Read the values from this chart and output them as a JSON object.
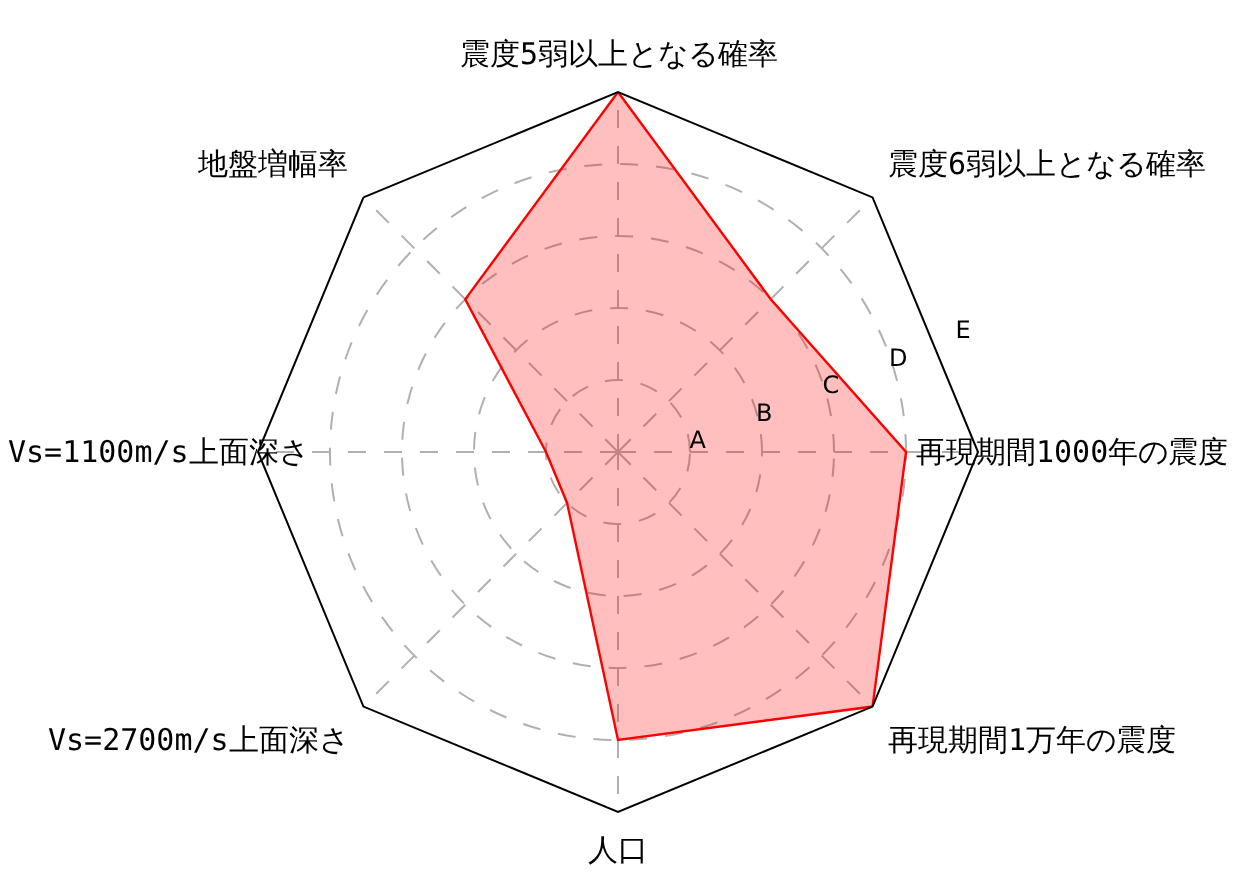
{
  "chart_data": {
    "type": "radar",
    "categories": [
      "震度5弱以上となる確率",
      "震度6弱以上となる確率",
      "再現期間1000年の震度",
      "再現期間1万年の震度",
      "人口",
      "Vs=2700m/s上面深さ",
      "Vs=1100m/s上面深さ",
      "地盤増幅率"
    ],
    "series": [
      {
        "color": "#ff0000",
        "values": [
          5,
          3,
          4,
          5,
          4,
          1,
          1,
          3
        ]
      }
    ],
    "ylim": [
      0,
      5
    ],
    "yticks": [
      {
        "value": 1,
        "label": "A"
      },
      {
        "value": 2,
        "label": "B"
      },
      {
        "value": 3,
        "label": "C"
      },
      {
        "value": 4,
        "label": "D"
      },
      {
        "value": 5,
        "label": "E"
      }
    ],
    "grid": true
  }
}
